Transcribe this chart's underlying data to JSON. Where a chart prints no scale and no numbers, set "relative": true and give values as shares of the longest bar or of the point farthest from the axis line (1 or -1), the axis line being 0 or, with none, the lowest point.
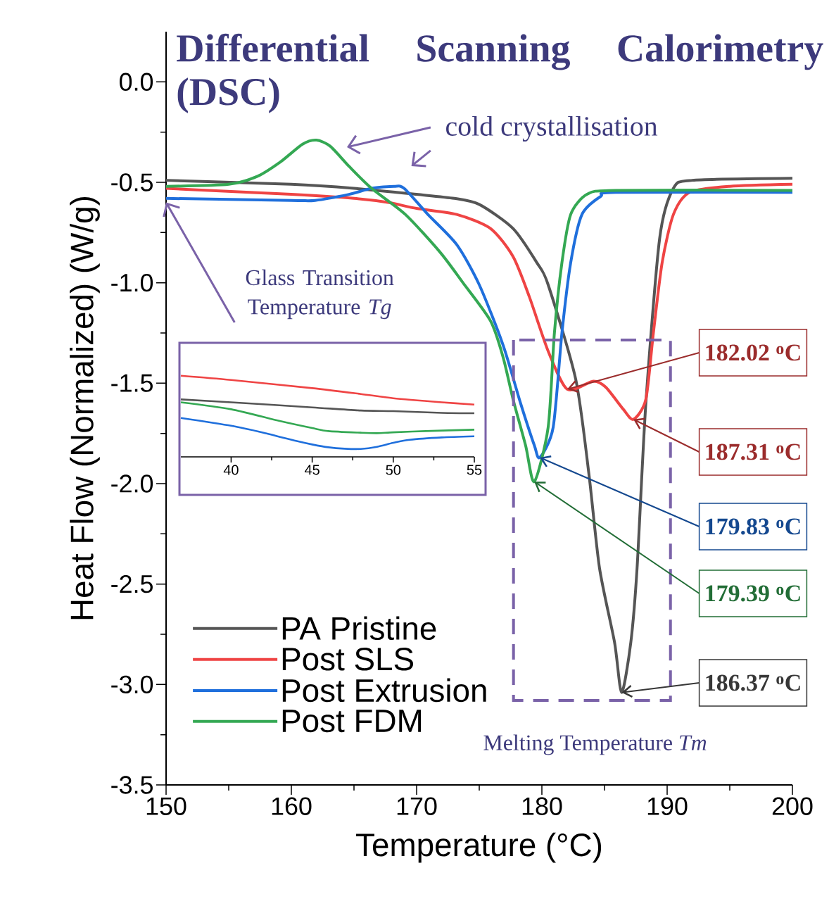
{
  "chart_data": [
    {
      "type": "line",
      "title": "Differential Scanning Calorimetry (DSC)",
      "xlabel": "Temperature (°C)",
      "ylabel": "Heat Flow (Normalized) (W/g)",
      "xlim": [
        150,
        200
      ],
      "xticks": [
        150,
        160,
        170,
        180,
        190,
        200
      ],
      "ylim": [
        -3.5,
        0.25
      ],
      "yticks": [
        {
          "value": -3.5,
          "label": "-3.5"
        },
        {
          "value": -3.0,
          "label": "-3.0"
        },
        {
          "value": -2.5,
          "label": "-2.5"
        },
        {
          "value": -2.0,
          "label": "-2.0"
        },
        {
          "value": -1.5,
          "label": "-1.5"
        },
        {
          "value": -1.0,
          "label": "-1.0"
        },
        {
          "value": -0.5,
          "label": "-0.5"
        },
        {
          "value": 0.0,
          "label": "0.0"
        }
      ],
      "legend": "bottom left",
      "annotations": [
        "cold crystallisation",
        {
          "text": "Glass Transition Temperature *Tg*",
          "x": 150,
          "y": -0.6
        },
        "Melting Temperature *Tm*",
        {
          "text": "182.02 $^{o}$C",
          "x": 182.02,
          "y": -1.53
        },
        {
          "text": "187.31 $^{o}$C",
          "x": 187.31,
          "y": -1.68
        },
        {
          "text": "179.83 $^{o}$C",
          "x": 179.83,
          "y": -1.87
        },
        {
          "text": "179.39 $^{o}$C",
          "x": 179.39,
          "y": -1.99
        },
        {
          "text": "186.37 $^{o}$C",
          "x": 186.37,
          "y": -3.04
        }
      ],
      "series": [
        {
          "name": "PA Pristine",
          "color": "#555555",
          "x": [
            150,
            160,
            165,
            170,
            173,
            175,
            177.7,
            179.6,
            180.5,
            182.7,
            183.75,
            184.6,
            185.8,
            186.37,
            187.1,
            187.6,
            188.3,
            189.4,
            190.5,
            192,
            200
          ],
          "values": [
            -0.49,
            -0.51,
            -0.53,
            -0.56,
            -0.58,
            -0.61,
            -0.73,
            -0.9,
            -1.01,
            -1.48,
            -1.95,
            -2.42,
            -2.79,
            -3.04,
            -2.79,
            -2.42,
            -1.6,
            -0.78,
            -0.53,
            -0.49,
            -0.48
          ]
        },
        {
          "name": "Post SLS",
          "color": "#ef4444",
          "x": [
            150,
            160,
            165,
            167.7,
            170,
            173.2,
            175.9,
            177.7,
            179,
            180.5,
            182.02,
            184.1,
            185.1,
            186.5,
            187.31,
            188.3,
            188.9,
            189.6,
            190.5,
            191.8,
            195,
            200
          ],
          "values": [
            -0.53,
            -0.56,
            -0.58,
            -0.6,
            -0.63,
            -0.66,
            -0.73,
            -0.87,
            -1.07,
            -1.34,
            -1.53,
            -1.49,
            -1.52,
            -1.63,
            -1.68,
            -1.58,
            -1.25,
            -0.9,
            -0.66,
            -0.55,
            -0.52,
            -0.51
          ]
        },
        {
          "name": "Post Extrusion",
          "color": "#1f6fdc",
          "x": [
            150,
            160,
            161.9,
            164.6,
            166.4,
            168.2,
            169,
            170.9,
            173.2,
            175,
            176.9,
            178.3,
            179.4,
            179.83,
            180.9,
            181.6,
            182.3,
            183.2,
            184.7,
            185.9,
            200
          ],
          "values": [
            -0.58,
            -0.59,
            -0.59,
            -0.56,
            -0.53,
            -0.52,
            -0.53,
            -0.66,
            -0.81,
            -1.01,
            -1.31,
            -1.6,
            -1.81,
            -1.87,
            -1.72,
            -1.25,
            -0.9,
            -0.66,
            -0.57,
            -0.55,
            -0.55
          ]
        },
        {
          "name": "Post FDM",
          "color": "#34a853",
          "x": [
            150,
            155,
            157.3,
            159.1,
            160.9,
            162,
            163.1,
            164.6,
            166.4,
            169.1,
            171.9,
            173.7,
            175.9,
            176.9,
            177.7,
            178.7,
            179.39,
            180.5,
            181,
            181.6,
            182.3,
            183.6,
            185.9,
            200
          ],
          "values": [
            -0.52,
            -0.51,
            -0.47,
            -0.4,
            -0.31,
            -0.29,
            -0.32,
            -0.42,
            -0.53,
            -0.66,
            -0.85,
            -1.0,
            -1.19,
            -1.37,
            -1.58,
            -1.81,
            -1.99,
            -1.72,
            -1.25,
            -0.9,
            -0.66,
            -0.56,
            -0.54,
            -0.54
          ]
        }
      ]
    },
    {
      "type": "line",
      "relative": true,
      "tick_labels": "x",
      "xlim": [
        36.9,
        55
      ],
      "xticks": [
        40,
        45,
        50,
        55
      ],
      "series": [
        {
          "color": "#555555",
          "x": [
            36.9,
            40,
            45,
            48,
            50,
            53,
            55
          ],
          "values": [
            0.708,
            0.673,
            0.61,
            0.572,
            0.564,
            0.543,
            0.538
          ]
        },
        {
          "color": "#ef4444",
          "x": [
            36.9,
            40,
            45,
            48,
            50,
            53,
            55
          ],
          "values": [
            1.0,
            0.948,
            0.847,
            0.775,
            0.723,
            0.673,
            0.645
          ]
        },
        {
          "color": "#1f6fdc",
          "x": [
            36.9,
            40,
            42,
            44,
            45,
            46,
            47,
            48,
            49,
            50,
            51,
            53,
            55
          ],
          "values": [
            0.48,
            0.384,
            0.298,
            0.197,
            0.153,
            0.118,
            0.101,
            0.098,
            0.124,
            0.173,
            0.211,
            0.24,
            0.254
          ]
        },
        {
          "color": "#34a853",
          "x": [
            36.9,
            40,
            43,
            45,
            46,
            48,
            49,
            50,
            52,
            55
          ],
          "values": [
            0.673,
            0.587,
            0.442,
            0.355,
            0.318,
            0.298,
            0.292,
            0.303,
            0.318,
            0.335
          ]
        }
      ]
    }
  ]
}
